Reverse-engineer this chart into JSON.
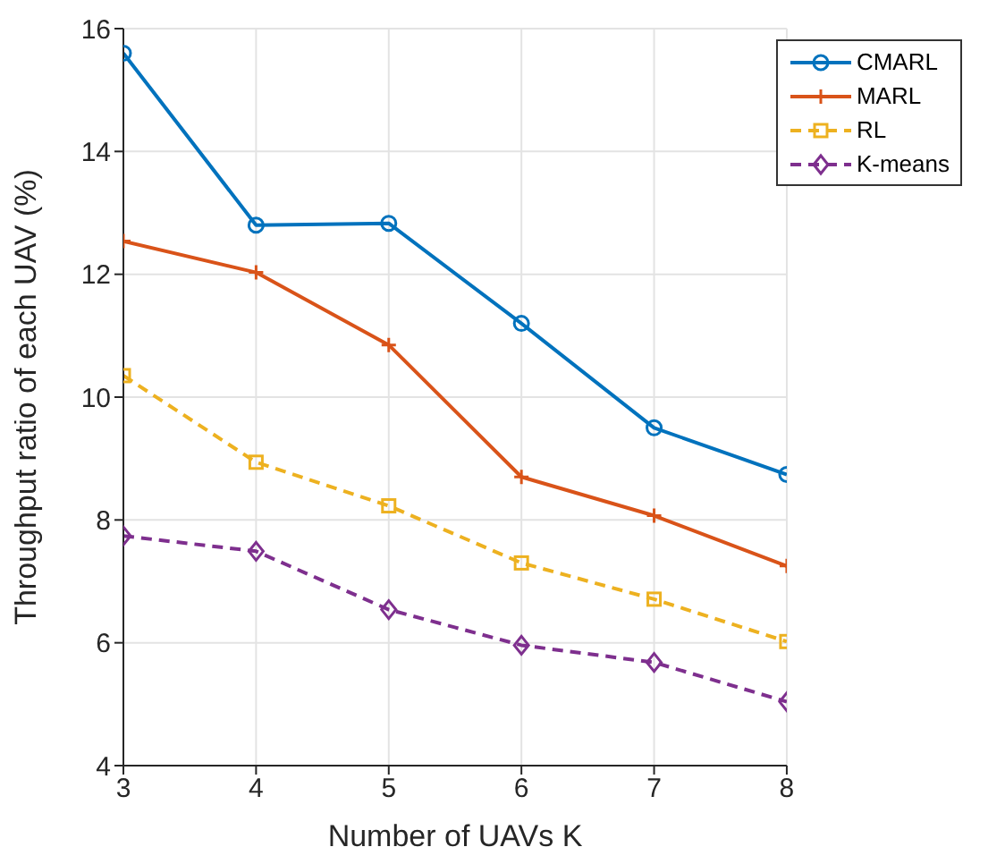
{
  "chart_data": {
    "type": "line",
    "xlabel": "Number of UAVs K",
    "ylabel": "Throughput ratio of each UAV (%)",
    "x": [
      3,
      4,
      5,
      6,
      7,
      8
    ],
    "xlim": [
      3,
      8
    ],
    "xticks": [
      3,
      4,
      5,
      6,
      7,
      8
    ],
    "ylim": [
      4,
      16
    ],
    "yticks": [
      4,
      6,
      8,
      10,
      12,
      14,
      16
    ],
    "grid": true,
    "legend": "top right",
    "series": [
      {
        "name": "CMARL",
        "color": "#0072bd",
        "marker": "circle",
        "line_style": "solid",
        "values": [
          15.6,
          12.8,
          12.83,
          11.2,
          9.5,
          8.74
        ]
      },
      {
        "name": "MARL",
        "color": "#d95319",
        "marker": "cross",
        "line_style": "solid",
        "values": [
          12.54,
          12.03,
          10.85,
          8.7,
          8.07,
          7.25
        ]
      },
      {
        "name": "RL",
        "color": "#edb120",
        "marker": "square",
        "line_style": "dashed",
        "values": [
          10.35,
          8.94,
          8.23,
          7.3,
          6.71,
          6.02
        ]
      },
      {
        "name": "K-means",
        "color": "#7e2f8e",
        "marker": "diamond",
        "line_style": "dashed",
        "values": [
          7.74,
          7.49,
          6.54,
          5.96,
          5.68,
          5.04
        ]
      }
    ]
  }
}
